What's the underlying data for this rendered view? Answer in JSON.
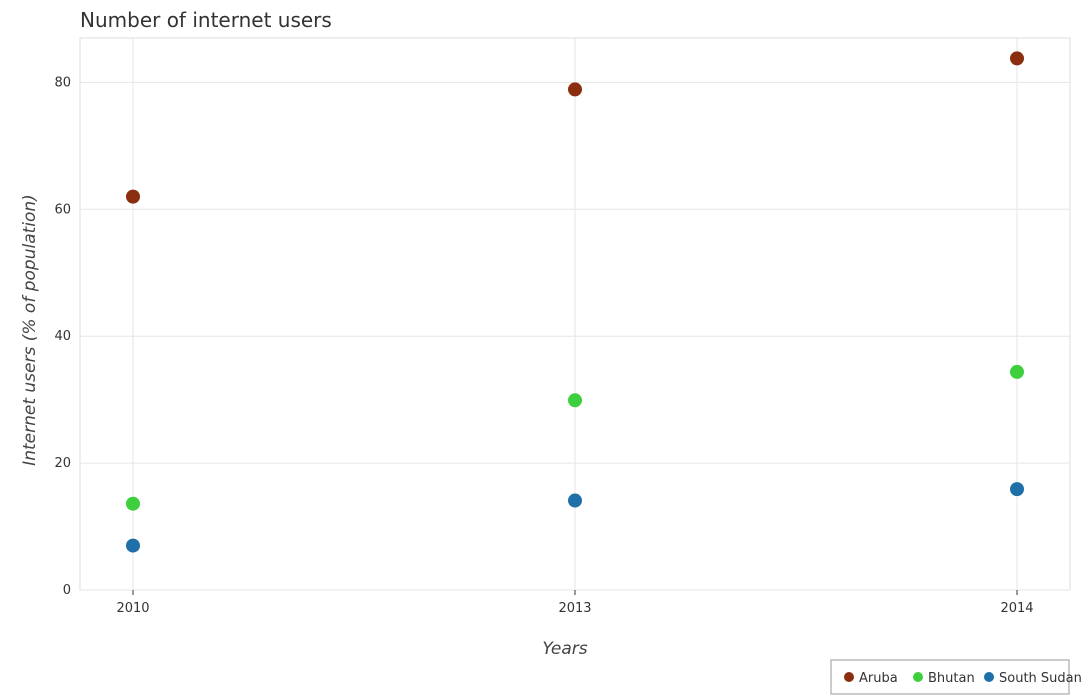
{
  "chart_data": {
    "type": "scatter",
    "title": "Number of internet users",
    "xlabel": "Years",
    "ylabel": "Internet users (% of population)",
    "categories": [
      "2010",
      "2013",
      "2014"
    ],
    "ylim": [
      0,
      87
    ],
    "yticks": [
      "0",
      "20",
      "40",
      "60",
      "80"
    ],
    "grid": true,
    "legend_position": "bottom-right",
    "series": [
      {
        "name": "Aruba",
        "color": "#8B2E0F",
        "values": [
          62.0,
          78.9,
          83.78
        ]
      },
      {
        "name": "Bhutan",
        "color": "#3ECF3E",
        "values": [
          13.6,
          29.9,
          34.37
        ]
      },
      {
        "name": "South Sudan",
        "color": "#1F6FA8",
        "values": [
          7.0,
          14.1,
          15.9
        ]
      }
    ]
  }
}
